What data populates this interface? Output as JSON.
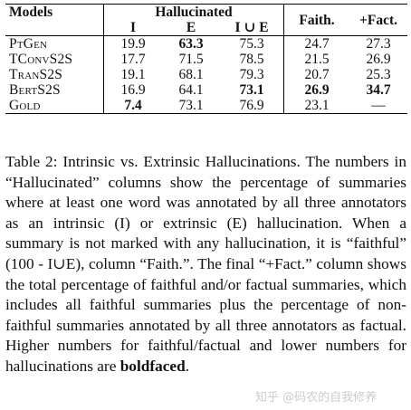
{
  "table": {
    "header": {
      "models": "Models",
      "hallucinated": "Hallucinated",
      "i": "I",
      "e": "E",
      "iue": "I ∪ E",
      "faith": "Faith.",
      "fact": "+Fact."
    },
    "rows": [
      {
        "model": "PtGen",
        "i": "19.9",
        "e": "63.3",
        "iue": "75.3",
        "faith": "24.7",
        "fact": "27.3"
      },
      {
        "model": "TConvS2S",
        "i": "17.7",
        "e": "71.5",
        "iue": "78.5",
        "faith": "21.5",
        "fact": "26.9"
      },
      {
        "model": "TranS2S",
        "i": "19.1",
        "e": "68.1",
        "iue": "79.3",
        "faith": "20.7",
        "fact": "25.3"
      },
      {
        "model": "BertS2S",
        "i": "16.9",
        "e": "64.1",
        "iue": "73.1",
        "faith": "26.9",
        "fact": "34.7"
      },
      {
        "model": "Gold",
        "i": "7.4",
        "e": "73.1",
        "iue": "76.9",
        "faith": "23.1",
        "fact": "—"
      }
    ]
  },
  "caption": {
    "body": "Table 2: Intrinsic vs. Extrinsic Hallucinations. The numbers in “Hallucinated” columns show the percent­age of summaries where at least one word was anno­tated by all three annotators as an intrinsic (I) or extrin­sic (E) hallucination. When a summary is not marked with any hallucination, it is “faithful” (100 - I∪E), col­umn “Faith.”. The final “+Fact.” column shows the total percentage of faithful and/or factual summaries, which includes all faithful summaries plus the percent­age of non-faithful summaries annotated by all three an­notators as factual. Higher numbers for faithful/factual and lower numbers for hallucinations are ",
    "bold_word": "boldfaced",
    "end": "."
  },
  "watermark": "知乎 @码农的自我修养"
}
